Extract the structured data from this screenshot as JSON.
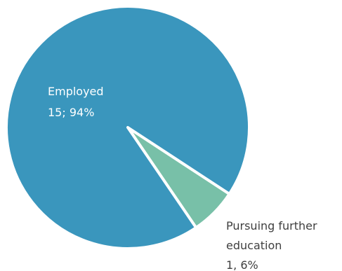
{
  "chart_data": {
    "type": "pie",
    "title": "",
    "slices": [
      {
        "category": "Employed",
        "value": 15,
        "percent": "94%",
        "color": "#3a96bd"
      },
      {
        "category_lines": [
          "Pursuing further",
          "education"
        ],
        "value": 1,
        "percent": "6%",
        "color": "#78c0a8"
      }
    ],
    "separator_color": "#ffffff",
    "data_labels": [
      {
        "line1": "Employed",
        "line2": "15; 94%"
      },
      {
        "line1": "Pursuing further",
        "line2": "education",
        "line3": "1, 6%"
      }
    ]
  }
}
